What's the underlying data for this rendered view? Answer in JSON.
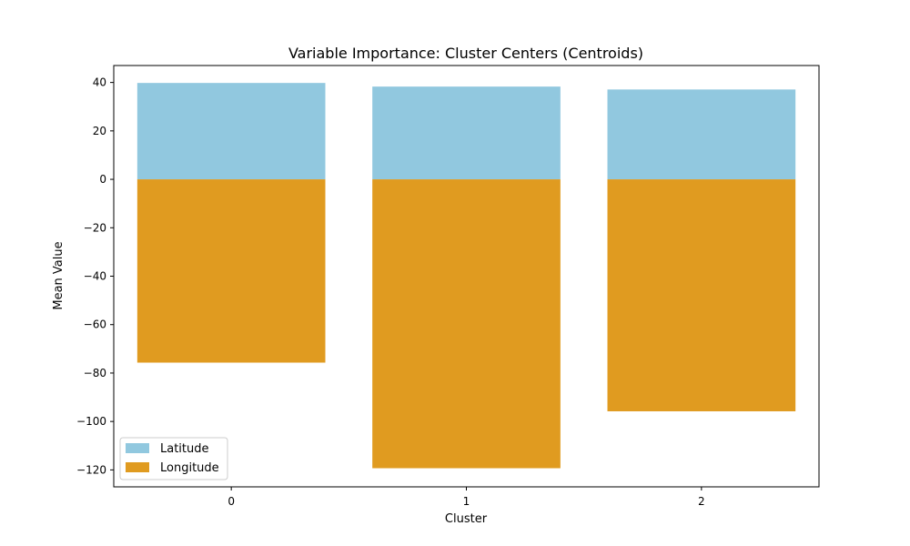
{
  "chart_data": {
    "type": "bar",
    "title": "Variable Importance: Cluster Centers (Centroids)",
    "xlabel": "Cluster",
    "ylabel": "Mean Value",
    "categories": [
      "0",
      "1",
      "2"
    ],
    "series": [
      {
        "name": "Latitude",
        "values": [
          39.8,
          38.3,
          37.1
        ],
        "color": "#91c8df"
      },
      {
        "name": "Longitude",
        "values": [
          -75.7,
          -119.3,
          -95.8
        ],
        "color": "#e09b20"
      }
    ],
    "ylim": [
      -127,
      47
    ],
    "yticks": [
      40,
      20,
      0,
      -20,
      -40,
      -60,
      -80,
      -100,
      -120
    ],
    "ytick_labels": [
      "40",
      "20",
      "0",
      "−20",
      "−40",
      "−60",
      "−80",
      "−100",
      "−120"
    ],
    "grid": false,
    "legend_position": "lower-left"
  }
}
